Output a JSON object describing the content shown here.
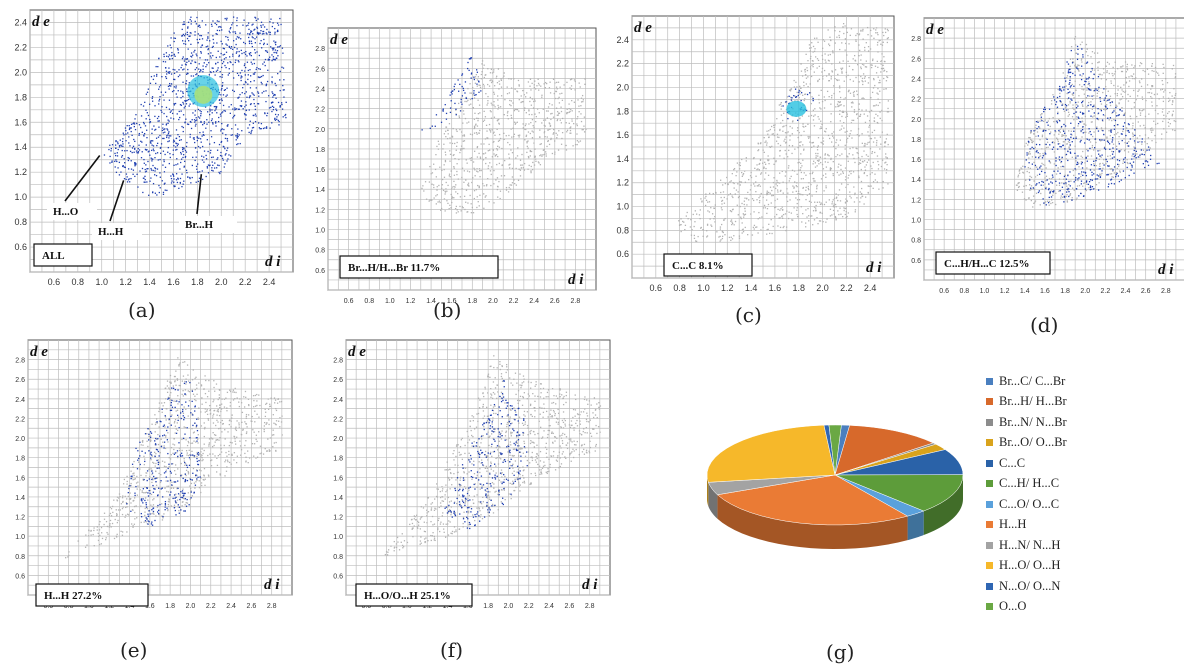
{
  "chart_data": [
    {
      "type": "scatter",
      "panel_label": "(a)",
      "box_label": "ALL",
      "xlabel": "d i",
      "ylabel": "d e",
      "x_ticks": [
        "0.6",
        "0.8",
        "1.0",
        "1.2",
        "1.4",
        "1.6",
        "1.8",
        "2.0",
        "2.2",
        "2.4"
      ],
      "y_ticks": [
        "0.6",
        "0.8",
        "1.0",
        "1.2",
        "1.4",
        "1.6",
        "1.8",
        "2.0",
        "2.2",
        "2.4"
      ],
      "xlim": [
        0.4,
        2.6
      ],
      "ylim": [
        0.4,
        2.5
      ],
      "annotations": [
        "H...O",
        "H...H",
        "Br...H"
      ]
    },
    {
      "type": "scatter",
      "panel_label": "(b)",
      "box_label": "Br...H/H...Br 11.7%",
      "xlabel": "d i",
      "ylabel": "d e",
      "x_ticks": [
        "0.6",
        "0.8",
        "1.0",
        "1.2",
        "1.4",
        "1.6",
        "1.8",
        "2.0",
        "2.2",
        "2.4",
        "2.6",
        "2.8"
      ],
      "y_ticks": [
        "0.6",
        "0.8",
        "1.0",
        "1.2",
        "1.4",
        "1.6",
        "1.8",
        "2.0",
        "2.2",
        "2.4",
        "2.6",
        "2.8"
      ],
      "xlim": [
        0.4,
        3.0
      ],
      "ylim": [
        0.4,
        3.0
      ]
    },
    {
      "type": "scatter",
      "panel_label": "(c)",
      "box_label": "C...C 8.1%",
      "xlabel": "d i",
      "ylabel": "d e",
      "x_ticks": [
        "0.6",
        "0.8",
        "1.0",
        "1.2",
        "1.4",
        "1.6",
        "1.8",
        "2.0",
        "2.2",
        "2.4"
      ],
      "y_ticks": [
        "0.6",
        "0.8",
        "1.0",
        "1.2",
        "1.4",
        "1.6",
        "1.8",
        "2.0",
        "2.2",
        "2.4"
      ],
      "xlim": [
        0.4,
        2.6
      ],
      "ylim": [
        0.4,
        2.6
      ]
    },
    {
      "type": "scatter",
      "panel_label": "(d)",
      "box_label": "C...H/H...C 12.5%",
      "xlabel": "d i",
      "ylabel": "d e",
      "x_ticks": [
        "0.6",
        "0.8",
        "1.0",
        "1.2",
        "1.4",
        "1.6",
        "1.8",
        "2.0",
        "2.2",
        "2.4",
        "2.6",
        "2.8"
      ],
      "y_ticks": [
        "0.6",
        "0.8",
        "1.0",
        "1.2",
        "1.4",
        "1.6",
        "1.8",
        "2.0",
        "2.2",
        "2.4",
        "2.6",
        "2.8"
      ],
      "xlim": [
        0.4,
        3.0
      ],
      "ylim": [
        0.4,
        3.0
      ]
    },
    {
      "type": "scatter",
      "panel_label": "(e)",
      "box_label": "H...H 27.2%",
      "xlabel": "d i",
      "ylabel": "d e",
      "x_ticks": [
        "0.6",
        "0.8",
        "1.0",
        "1.2",
        "1.4",
        "1.6",
        "1.8",
        "2.0",
        "2.2",
        "2.4",
        "2.6",
        "2.8"
      ],
      "y_ticks": [
        "0.6",
        "0.8",
        "1.0",
        "1.2",
        "1.4",
        "1.6",
        "1.8",
        "2.0",
        "2.2",
        "2.4",
        "2.6",
        "2.8"
      ],
      "xlim": [
        0.4,
        3.0
      ],
      "ylim": [
        0.4,
        3.0
      ]
    },
    {
      "type": "scatter",
      "panel_label": "(f)",
      "box_label": "H...O/O...H 25.1%",
      "xlabel": "d i",
      "ylabel": "d e",
      "x_ticks": [
        "0.6",
        "0.8",
        "1.0",
        "1.2",
        "1.4",
        "1.6",
        "1.8",
        "2.0",
        "2.2",
        "2.4",
        "2.6",
        "2.8"
      ],
      "y_ticks": [
        "0.6",
        "0.8",
        "1.0",
        "1.2",
        "1.4",
        "1.6",
        "1.8",
        "2.0",
        "2.2",
        "2.4",
        "2.6",
        "2.8"
      ],
      "xlim": [
        0.4,
        3.0
      ],
      "ylim": [
        0.4,
        3.0
      ]
    },
    {
      "type": "pie",
      "panel_label": "(g)",
      "slices": [
        {
          "name": "Br...C/ C...Br",
          "value": 1.0,
          "color": "#4a7fbf"
        },
        {
          "name": "Br...H/ H...Br",
          "value": 11.7,
          "color": "#d7692b"
        },
        {
          "name": "Br...N/ N...Br",
          "value": 0.5,
          "color": "#8c8c8c"
        },
        {
          "name": "Br...O/ O...Br",
          "value": 2.0,
          "color": "#d9a31c"
        },
        {
          "name": "C...C",
          "value": 8.1,
          "color": "#2a62a8"
        },
        {
          "name": "C...H/ H...C",
          "value": 12.5,
          "color": "#5d9c3a"
        },
        {
          "name": "C...O/ O...C",
          "value": 2.5,
          "color": "#5aa1dc"
        },
        {
          "name": "H...H",
          "value": 27.2,
          "color": "#ea7b35"
        },
        {
          "name": "H...N/ N...H",
          "value": 4.0,
          "color": "#a3a3a3"
        },
        {
          "name": "H...O/ O...H",
          "value": 25.1,
          "color": "#f6b82a"
        },
        {
          "name": "N...O/ O...N",
          "value": 0.6,
          "color": "#2f66b3"
        },
        {
          "name": "O...O",
          "value": 1.5,
          "color": "#6aa844"
        }
      ]
    }
  ],
  "colors": {
    "cloud_gray": "#b3b3b3",
    "cloud_blue": "#1f3fb0",
    "cloud_cyan": "#28c0e0",
    "cloud_center": "#a9e07a",
    "grid": "#bdbdbd"
  }
}
